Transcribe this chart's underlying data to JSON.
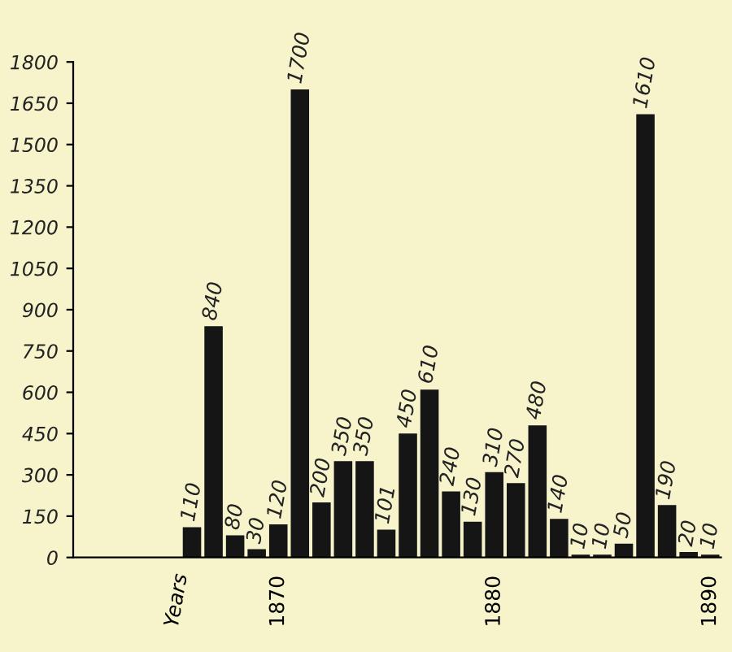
{
  "chart_data": {
    "type": "bar",
    "annotations": [
      "Years"
    ],
    "categories": [
      null,
      null,
      null,
      null,
      null,
      null,
      null,
      null,
      null,
      "1870",
      null,
      null,
      null,
      null,
      null,
      null,
      null,
      null,
      null,
      "1880",
      null,
      null,
      null,
      null,
      null,
      null,
      null,
      null,
      null,
      "1890"
    ],
    "values": [
      null,
      null,
      null,
      null,
      null,
      110,
      840,
      80,
      30,
      120,
      1700,
      200,
      350,
      350,
      101,
      450,
      610,
      240,
      130,
      310,
      270,
      480,
      140,
      10,
      10,
      50,
      1610,
      190,
      20,
      10
    ],
    "color": "#151515",
    "data_labels": true,
    "grid": false,
    "ylim": [
      0,
      1800
    ],
    "yticks": [
      0,
      150,
      300,
      450,
      600,
      750,
      900,
      1050,
      1200,
      1350,
      1500,
      1650,
      1800
    ]
  }
}
